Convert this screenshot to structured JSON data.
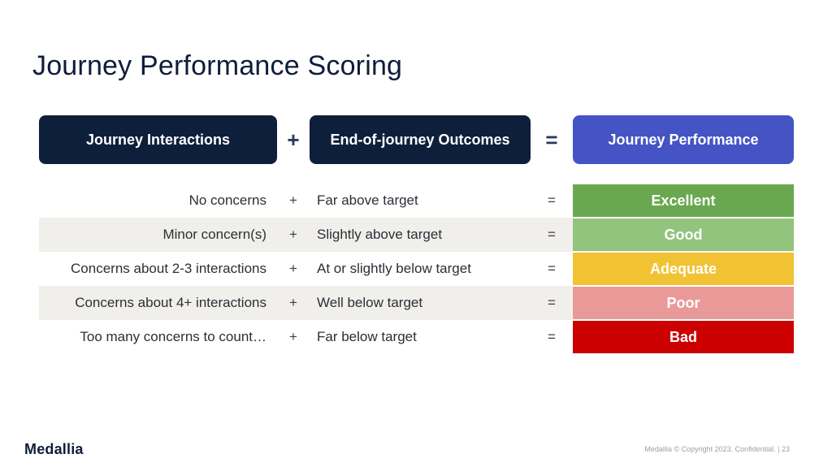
{
  "slide": {
    "title": "Journey Performance Scoring"
  },
  "headers": {
    "interactions": "Journey Interactions",
    "plus": "+",
    "outcomes": "End-of-journey Outcomes",
    "equals": "=",
    "performance": "Journey Performance",
    "performance_color": "#4454c4",
    "dark_color": "#0e1f3c"
  },
  "rows": [
    {
      "interactions": "No concerns",
      "plus": "+",
      "outcome": "Far above target",
      "equals": "=",
      "score": "Excellent",
      "color": "#6aa84f"
    },
    {
      "interactions": "Minor concern(s)",
      "plus": "+",
      "outcome": "Slightly above target",
      "equals": "=",
      "score": "Good",
      "color": "#93c47d"
    },
    {
      "interactions": "Concerns about 2-3 interactions",
      "plus": "+",
      "outcome": "At or slightly below target",
      "equals": "=",
      "score": "Adequate",
      "color": "#f1c232"
    },
    {
      "interactions": "Concerns about 4+ interactions",
      "plus": "+",
      "outcome": "Well below target",
      "equals": "=",
      "score": "Poor",
      "color": "#ea9999"
    },
    {
      "interactions": "Too many concerns to count…",
      "plus": "+",
      "outcome": "Far below target",
      "equals": "=",
      "score": "Bad",
      "color": "#cc0000"
    }
  ],
  "footer": {
    "logo": "Medallia",
    "copyright": "Medallia © Copyright 2023. Confidential.  |  23"
  }
}
